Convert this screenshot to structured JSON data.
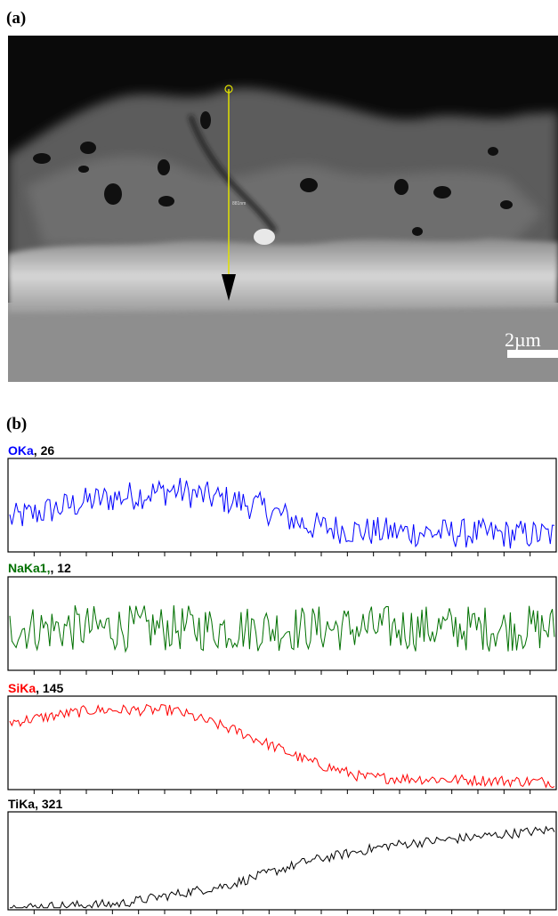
{
  "figure": {
    "panel_a_label": "(a)",
    "panel_b_label": "(b)",
    "scale_bar_text": "2µm",
    "linescan_annotation": "881nm"
  },
  "chart_data": {
    "type": "line",
    "x_points": 260,
    "series": [
      {
        "name": "OKa",
        "suffix": ",",
        "count": "26",
        "color": "#0000ff",
        "profile": [
          [
            0,
            0.35
          ],
          [
            0.15,
            0.55
          ],
          [
            0.3,
            0.66
          ],
          [
            0.45,
            0.5
          ],
          [
            0.55,
            0.28
          ],
          [
            0.65,
            0.22
          ],
          [
            1.0,
            0.18
          ]
        ],
        "noise": 0.32
      },
      {
        "name": "NaKa1,",
        "suffix": ",",
        "count": "12",
        "color": "#007000",
        "profile": [
          [
            0,
            0.45
          ],
          [
            1.0,
            0.45
          ]
        ],
        "noise": 0.5
      },
      {
        "name": "SiKa",
        "suffix": ",",
        "count": "145",
        "color": "#ff0000",
        "profile": [
          [
            0,
            0.72
          ],
          [
            0.15,
            0.85
          ],
          [
            0.3,
            0.85
          ],
          [
            0.42,
            0.62
          ],
          [
            0.55,
            0.3
          ],
          [
            0.65,
            0.13
          ],
          [
            1.0,
            0.08
          ]
        ],
        "noise": 0.12
      },
      {
        "name": "TiKa",
        "suffix": ",",
        "count": "321",
        "color": "#000000",
        "profile": [
          [
            0,
            0.02
          ],
          [
            0.2,
            0.06
          ],
          [
            0.4,
            0.25
          ],
          [
            0.55,
            0.5
          ],
          [
            0.7,
            0.66
          ],
          [
            0.85,
            0.74
          ],
          [
            1.0,
            0.82
          ]
        ],
        "noise": 0.1
      }
    ]
  }
}
